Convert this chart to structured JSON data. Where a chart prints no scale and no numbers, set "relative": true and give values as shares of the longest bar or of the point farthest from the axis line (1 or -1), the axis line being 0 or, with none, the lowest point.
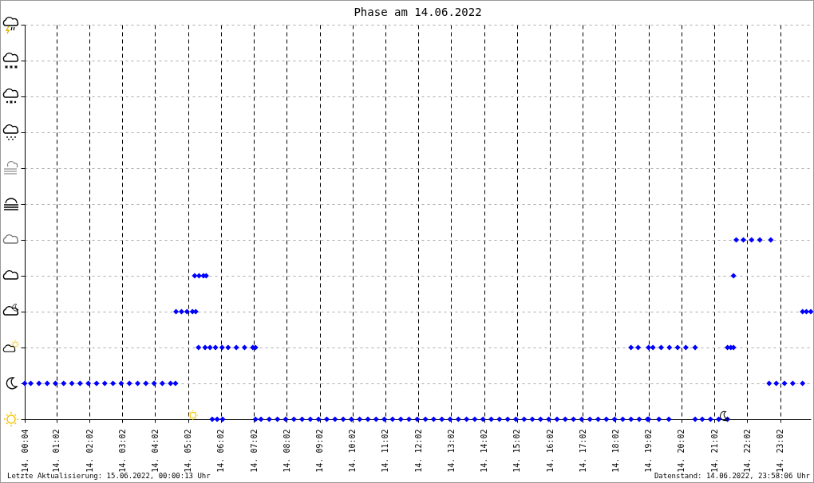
{
  "chart_data": {
    "type": "scatter",
    "title": "Phase am 14.06.2022",
    "annotations": [
      "Letzte Aktualisierung: 15.06.2022, 00:00:13 Uhr",
      "Datenstand: 14.06.2022, 23:58:06 Uhr"
    ],
    "xlim": [
      "2022-06-14T00:04",
      "2022-06-14T23:58"
    ],
    "xticks": [
      {
        "value": "2022-06-14T00:04",
        "label": "14.  00:04"
      },
      {
        "value": "2022-06-14T01:02",
        "label": "14.  01:02"
      },
      {
        "value": "2022-06-14T02:02",
        "label": "14.  02:02"
      },
      {
        "value": "2022-06-14T03:02",
        "label": "14.  03:02"
      },
      {
        "value": "2022-06-14T04:02",
        "label": "14.  04:02"
      },
      {
        "value": "2022-06-14T05:02",
        "label": "14.  05:02"
      },
      {
        "value": "2022-06-14T06:02",
        "label": "14.  06:02"
      },
      {
        "value": "2022-06-14T07:02",
        "label": "14.  07:02"
      },
      {
        "value": "2022-06-14T08:02",
        "label": "14.  08:02"
      },
      {
        "value": "2022-06-14T09:02",
        "label": "14.  09:02"
      },
      {
        "value": "2022-06-14T10:02",
        "label": "14.  10:02"
      },
      {
        "value": "2022-06-14T11:02",
        "label": "14.  11:02"
      },
      {
        "value": "2022-06-14T12:02",
        "label": "14.  12:02"
      },
      {
        "value": "2022-06-14T13:02",
        "label": "14.  13:02"
      },
      {
        "value": "2022-06-14T14:02",
        "label": "14.  14:02"
      },
      {
        "value": "2022-06-14T15:02",
        "label": "14.  15:02"
      },
      {
        "value": "2022-06-14T16:02",
        "label": "14.  16:02"
      },
      {
        "value": "2022-06-14T17:02",
        "label": "14.  17:02"
      },
      {
        "value": "2022-06-14T18:02",
        "label": "14.  18:02"
      },
      {
        "value": "2022-06-14T19:02",
        "label": "14.  19:02"
      },
      {
        "value": "2022-06-14T20:02",
        "label": "14.  20:02"
      },
      {
        "value": "2022-06-14T21:02",
        "label": "14.  21:02"
      },
      {
        "value": "2022-06-14T22:02",
        "label": "14.  22:02"
      },
      {
        "value": "2022-06-14T23:02",
        "label": "14.  23:02"
      }
    ],
    "relative": true,
    "tick_labels": "x",
    "grid": true,
    "marker": "diamond",
    "legend": false,
    "series": [
      {
        "color": "#0000ff",
        "x": [
          "2022-06-14T00:04",
          "2022-06-14T00:15",
          "2022-06-14T00:30",
          "2022-06-14T00:45",
          "2022-06-14T01:00",
          "2022-06-14T01:15",
          "2022-06-14T01:30",
          "2022-06-14T01:45",
          "2022-06-14T02:00",
          "2022-06-14T02:15",
          "2022-06-14T02:30",
          "2022-06-14T02:45",
          "2022-06-14T03:00",
          "2022-06-14T03:15",
          "2022-06-14T03:30",
          "2022-06-14T03:45",
          "2022-06-14T04:00",
          "2022-06-14T04:15",
          "2022-06-14T04:30",
          "2022-06-14T04:39",
          "2022-06-14T04:40",
          "2022-06-14T04:50",
          "2022-06-14T05:00",
          "2022-06-14T05:10",
          "2022-06-14T05:16",
          "2022-06-14T05:14",
          "2022-06-14T05:22",
          "2022-06-14T05:30",
          "2022-06-14T05:35",
          "2022-06-14T05:21",
          "2022-06-14T05:33",
          "2022-06-14T05:42",
          "2022-06-14T05:52",
          "2022-06-14T05:46",
          "2022-06-14T05:55",
          "2022-06-14T06:05",
          "2022-06-14T06:04",
          "2022-06-14T06:15",
          "2022-06-14T06:30",
          "2022-06-14T06:45",
          "2022-06-14T07:00",
          "2022-06-14T07:05",
          "2022-06-14T07:05",
          "2022-06-14T07:15",
          "2022-06-14T07:30",
          "2022-06-14T07:45",
          "2022-06-14T08:00",
          "2022-06-14T08:15",
          "2022-06-14T08:30",
          "2022-06-14T08:45",
          "2022-06-14T09:00",
          "2022-06-14T09:15",
          "2022-06-14T09:30",
          "2022-06-14T09:45",
          "2022-06-14T10:00",
          "2022-06-14T10:15",
          "2022-06-14T10:30",
          "2022-06-14T10:45",
          "2022-06-14T11:00",
          "2022-06-14T11:15",
          "2022-06-14T11:30",
          "2022-06-14T11:45",
          "2022-06-14T12:00",
          "2022-06-14T12:15",
          "2022-06-14T12:30",
          "2022-06-14T12:45",
          "2022-06-14T13:00",
          "2022-06-14T13:15",
          "2022-06-14T13:30",
          "2022-06-14T13:45",
          "2022-06-14T14:00",
          "2022-06-14T14:15",
          "2022-06-14T14:30",
          "2022-06-14T14:45",
          "2022-06-14T15:00",
          "2022-06-14T15:15",
          "2022-06-14T15:30",
          "2022-06-14T15:45",
          "2022-06-14T16:00",
          "2022-06-14T16:15",
          "2022-06-14T16:30",
          "2022-06-14T16:45",
          "2022-06-14T17:00",
          "2022-06-14T17:15",
          "2022-06-14T17:30",
          "2022-06-14T17:45",
          "2022-06-14T18:00",
          "2022-06-14T18:15",
          "2022-06-14T18:30",
          "2022-06-14T18:45",
          "2022-06-14T19:00",
          "2022-06-14T19:02",
          "2022-06-14T19:21",
          "2022-06-14T19:39",
          "2022-06-14T20:27",
          "2022-06-14T20:40",
          "2022-06-14T20:55",
          "2022-06-14T21:10",
          "2022-06-14T21:26",
          "2022-06-14T18:30",
          "2022-06-14T18:43",
          "2022-06-14T19:02",
          "2022-06-14T19:10",
          "2022-06-14T19:25",
          "2022-06-14T19:40",
          "2022-06-14T19:55",
          "2022-06-14T20:10",
          "2022-06-14T20:27",
          "2022-06-14T21:26",
          "2022-06-14T21:32",
          "2022-06-14T21:37",
          "2022-06-14T21:37",
          "2022-06-14T21:42",
          "2022-06-14T21:55",
          "2022-06-14T22:10",
          "2022-06-14T22:25",
          "2022-06-14T22:45",
          "2022-06-14T22:42",
          "2022-06-14T22:55",
          "2022-06-14T23:10",
          "2022-06-14T23:25",
          "2022-06-14T23:43",
          "2022-06-14T23:43",
          "2022-06-14T23:50",
          "2022-06-14T23:58"
        ],
        "values": [
          0.2,
          0.2,
          0.2,
          0.2,
          0.2,
          0.2,
          0.2,
          0.2,
          0.2,
          0.2,
          0.2,
          0.2,
          0.2,
          0.2,
          0.2,
          0.2,
          0.2,
          0.2,
          0.2,
          0.2,
          0.6,
          0.6,
          0.6,
          0.6,
          0.6,
          0.8,
          0.8,
          0.8,
          0.8,
          0.4,
          0.4,
          0.4,
          0.4,
          0,
          0,
          0,
          0.4,
          0.4,
          0.4,
          0.4,
          0.4,
          0.4,
          0,
          0,
          0,
          0,
          0,
          0,
          0,
          0,
          0,
          0,
          0,
          0,
          0,
          0,
          0,
          0,
          0,
          0,
          0,
          0,
          0,
          0,
          0,
          0,
          0,
          0,
          0,
          0,
          0,
          0,
          0,
          0,
          0,
          0,
          0,
          0,
          0,
          0,
          0,
          0,
          0,
          0,
          0,
          0,
          0,
          0,
          0,
          0,
          0,
          0,
          0,
          0,
          0,
          0,
          0,
          0,
          0,
          0.4,
          0.4,
          0.4,
          0.4,
          0.4,
          0.4,
          0.4,
          0.4,
          0.4,
          0.4,
          0.4,
          0.4,
          0.8,
          1,
          1,
          1,
          1,
          1,
          0.2,
          0.2,
          0.2,
          0.2,
          0.2,
          0.6,
          0.6,
          0.6
        ]
      }
    ]
  }
}
